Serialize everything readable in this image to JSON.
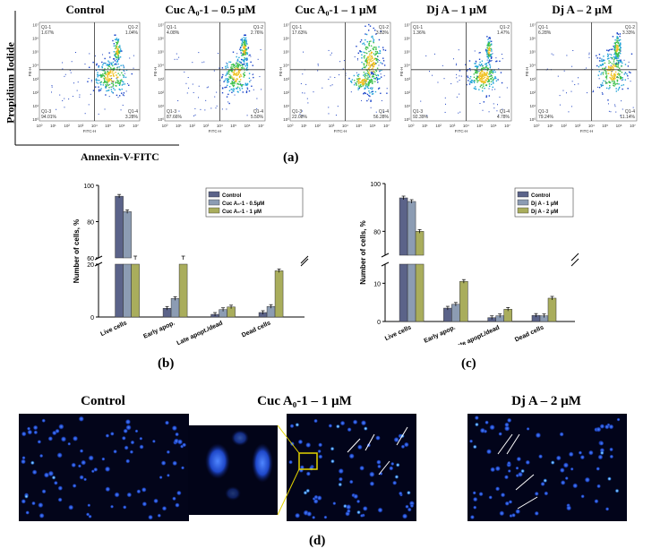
{
  "panel_a": {
    "label": "(a)",
    "y_axis_label": "Propidium Iodide",
    "x_axis_label": "Annexin-V-FITC",
    "plot_xlabel": "FITC-H",
    "plot_ylabel": "PE-H",
    "ticks": [
      "10⁰",
      "10¹",
      "10²",
      "10³",
      "10⁴",
      "10⁵",
      "10⁶",
      "10⁷"
    ],
    "plots": [
      {
        "title": "Control",
        "q1": "Q1-1",
        "q1v": "1.67%",
        "q2": "Q1-2",
        "q2v": "1.04%",
        "q3": "Q1-3",
        "q3v": "94.01%",
        "q4": "Q1-4",
        "q4v": "3.28%"
      },
      {
        "title": "Cuc A₀-1 – 0.5 µM",
        "q1": "Q1-1",
        "q1v": "4.08%",
        "q2": "Q1-2",
        "q2v": "2.76%",
        "q3": "Q1-3",
        "q3v": "87.66%",
        "q4": "Q1-4",
        "q4v": "5.50%"
      },
      {
        "title": "Cuc A₀-1 – 1 µM",
        "q1": "Q1-1",
        "q1v": "17.63%",
        "q2": "Q1-2",
        "q2v": "3.83%",
        "q3": "Q1-3",
        "q3v": "22.08%",
        "q4": "Q1-4",
        "q4v": "56.28%"
      },
      {
        "title": "Dj A – 1 µM",
        "q1": "Q1-1",
        "q1v": "1.36%",
        "q2": "Q1-2",
        "q2v": "1.47%",
        "q3": "Q1-3",
        "q3v": "92.39%",
        "q4": "Q1-4",
        "q4v": "4.78%"
      },
      {
        "title": "Dj A – 2 µM",
        "q1": "Q1-1",
        "q1v": "6.28%",
        "q2": "Q1-2",
        "q2v": "3.33%",
        "q3": "Q1-3",
        "q3v": "79.24%",
        "q4": "Q1-4",
        "q4v": "11.14%"
      }
    ]
  },
  "panel_b_label": "(b)",
  "panel_c_label": "(c)",
  "panel_d": {
    "label": "(d)",
    "titles": [
      "Control",
      "Cuc A₀-1 – 1 µM",
      "Dj A – 2 µM"
    ]
  },
  "colors": {
    "control": "#5b6389",
    "low": "#8c9cb3",
    "high": "#a9ad5c"
  },
  "chart_data": [
    {
      "type": "bar",
      "ylabel": "Number of cells, %",
      "categories": [
        "Live cells",
        "Early apop.",
        "Late apopt./dead",
        "Dead cells"
      ],
      "axis_break": {
        "lower": [
          0,
          20
        ],
        "upper": [
          60,
          100
        ]
      },
      "yticks": [
        0,
        20,
        60,
        80,
        100
      ],
      "legend": "top-right",
      "series": [
        {
          "name": "Control",
          "values": [
            94.0,
            3.3,
            1.0,
            1.7
          ]
        },
        {
          "name": "Cuc A₀-1 - 0.5µM",
          "values": [
            85.5,
            7.0,
            2.8,
            4.0
          ]
        },
        {
          "name": "Cuc A₀-1 - 1 µM",
          "values": [
            20.5,
            56.5,
            3.8,
            17.5
          ]
        }
      ]
    },
    {
      "type": "bar",
      "ylabel": "Number of cells, %",
      "categories": [
        "Live cells",
        "Early apop.",
        "Late apopt./dead",
        "Dead cells"
      ],
      "axis_break": {
        "lower": [
          0,
          15
        ],
        "upper": [
          70,
          100
        ]
      },
      "yticks": [
        0,
        10,
        80,
        100
      ],
      "legend": "top-right",
      "series": [
        {
          "name": "Control",
          "values": [
            94.0,
            3.5,
            1.0,
            1.6
          ]
        },
        {
          "name": "Dj A - 1 µM",
          "values": [
            92.5,
            4.5,
            1.5,
            1.5
          ]
        },
        {
          "name": "Dj A - 2 µM",
          "values": [
            80.0,
            10.5,
            3.2,
            6.1
          ]
        }
      ]
    }
  ]
}
